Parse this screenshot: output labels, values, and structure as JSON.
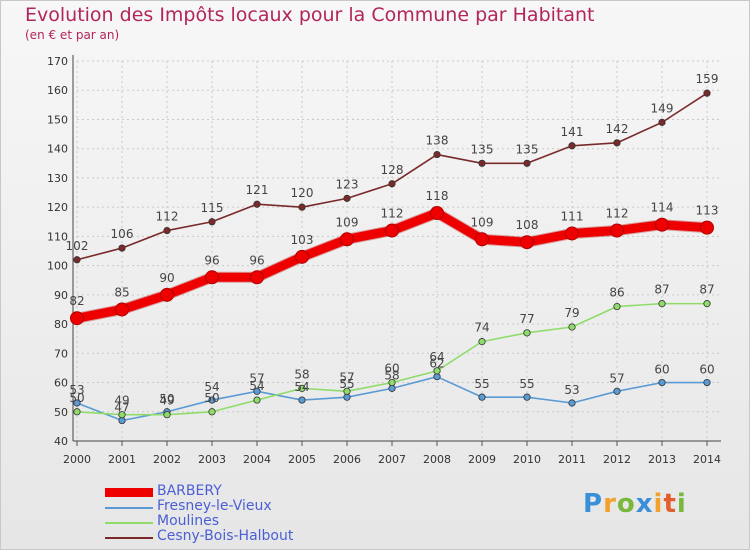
{
  "header": {
    "title": "Evolution des Impôts locaux pour la Commune par Habitant",
    "subtitle": "(en € et par an)"
  },
  "brand": {
    "letters": [
      {
        "char": "P",
        "color": "#3a8fd8"
      },
      {
        "char": "r",
        "color": "#f2a12c"
      },
      {
        "char": "o",
        "color": "#78b83c"
      },
      {
        "char": "x",
        "color": "#3a8fd8"
      },
      {
        "char": "i",
        "color": "#f2a12c"
      },
      {
        "char": "t",
        "color": "#e35d2f"
      },
      {
        "char": "i",
        "color": "#78b83c"
      }
    ]
  },
  "chart_data": {
    "type": "line",
    "title": "Evolution des Impôts locaux pour la Commune par Habitant",
    "subtitle": "(en € et par an)",
    "xlabel": "",
    "ylabel": "",
    "ylim": [
      40,
      170
    ],
    "yticks": [
      40,
      50,
      60,
      70,
      80,
      90,
      100,
      110,
      120,
      130,
      140,
      150,
      160,
      170
    ],
    "grid": true,
    "legend_position": "bottom-left",
    "categories": [
      "2000",
      "2001",
      "2002",
      "2003",
      "2004",
      "2005",
      "2006",
      "2007",
      "2008",
      "2009",
      "2010",
      "2011",
      "2012",
      "2013",
      "2014"
    ],
    "series": [
      {
        "name": "BARBERY",
        "color": "#ee0000",
        "emphasis": true,
        "values": [
          82,
          85,
          90,
          96,
          96,
          103,
          109,
          112,
          118,
          109,
          108,
          111,
          112,
          114,
          113
        ]
      },
      {
        "name": "Fresney-le-Vieux",
        "color": "#5b9bd5",
        "emphasis": false,
        "values": [
          53,
          47,
          50,
          54,
          57,
          54,
          55,
          58,
          62,
          55,
          55,
          53,
          57,
          60,
          60
        ],
        "labels": [
          "53",
          "47",
          "50",
          "54",
          "57",
          "54",
          "55",
          "58",
          "62",
          "55",
          "55",
          "53",
          "57",
          "60",
          "60"
        ]
      },
      {
        "name": "Moulines",
        "color": "#8fdc6a",
        "emphasis": false,
        "values": [
          50,
          49,
          49,
          50,
          54,
          58,
          57,
          60,
          64,
          74,
          77,
          79,
          86,
          87,
          87
        ]
      },
      {
        "name": "Cesny-Bois-Halbout",
        "color": "#7a2a2a",
        "emphasis": false,
        "values": [
          102,
          106,
          112,
          115,
          121,
          120,
          123,
          128,
          138,
          135,
          135,
          141,
          142,
          149,
          159
        ]
      }
    ]
  }
}
